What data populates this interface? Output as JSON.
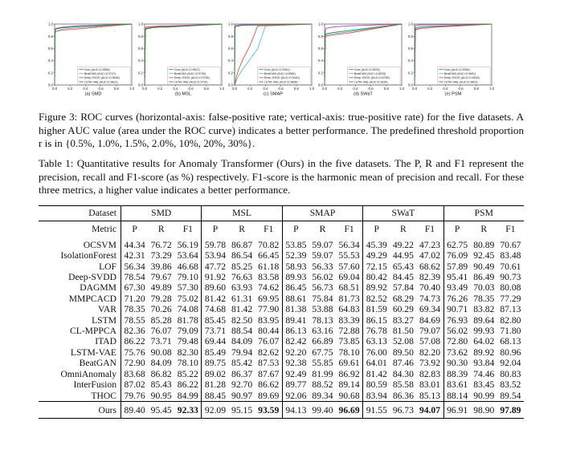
{
  "figure": {
    "caption_label": "Figure 3:",
    "caption_text": "ROC curves (horizontal-axis: false-positive rate; vertical-axis: true-positive rate) for the five datasets. A higher AUC value (area under the ROC curve) indicates a better performance. The predefined threshold proportion r is in {0.5%, 1.0%, 1.5%, 2.0%, 10%, 20%, 30%}."
  },
  "chart_data": [
    {
      "type": "line",
      "subtitle": "(a) SMD",
      "xlim": [
        0,
        1
      ],
      "ylim": [
        0,
        1
      ],
      "xticks": [
        "0.0",
        "0.2",
        "0.4",
        "0.6",
        "0.8",
        "1.0"
      ],
      "yticks": [
        "0.0",
        "0.2",
        "0.4",
        "0.6",
        "0.8",
        "1.0"
      ],
      "legend_position": "bottom-right",
      "series": [
        {
          "name": "Ours (AUC=0.9866)",
          "color": "#a348c9",
          "x": [
            0,
            0.005,
            0.01,
            0.02,
            0.1,
            0.2,
            0.3,
            1
          ],
          "y": [
            0,
            0.88,
            0.92,
            0.93,
            0.95,
            0.96,
            0.97,
            1
          ]
        },
        {
          "name": "BeatGAN (AUC=0.9727)",
          "color": "#58bfe0",
          "x": [
            0,
            0.005,
            0.01,
            0.02,
            0.1,
            0.2,
            0.3,
            1
          ],
          "y": [
            0,
            0.82,
            0.86,
            0.88,
            0.92,
            0.93,
            0.94,
            1
          ]
        },
        {
          "name": "Deep-SVDD (AUC=0.9648)",
          "color": "#e8503a",
          "x": [
            0,
            0.005,
            0.01,
            0.02,
            0.1,
            0.2,
            0.3,
            1
          ],
          "y": [
            0,
            0.84,
            0.87,
            0.88,
            0.9,
            0.91,
            0.92,
            1
          ]
        },
        {
          "name": "LSTM-VAE (AUC=0.9831)",
          "color": "#2e8b3a",
          "x": [
            0,
            0.005,
            0.01,
            0.02,
            0.1,
            0.2,
            0.3,
            1
          ],
          "y": [
            0,
            0.86,
            0.9,
            0.92,
            0.94,
            0.95,
            0.96,
            1
          ]
        }
      ]
    },
    {
      "type": "line",
      "subtitle": "(b) MSL",
      "xlim": [
        0,
        1
      ],
      "ylim": [
        0,
        1
      ],
      "xticks": [
        "0.0",
        "0.2",
        "0.4",
        "0.6",
        "0.8",
        "1.0"
      ],
      "yticks": [
        "0.0",
        "0.2",
        "0.4",
        "0.6",
        "0.8",
        "1.0"
      ],
      "legend_position": "bottom-right",
      "series": [
        {
          "name": "Ours (AUC=0.9812)",
          "color": "#a348c9",
          "x": [
            0,
            0.01,
            0.02,
            0.1,
            0.2,
            0.3,
            1
          ],
          "y": [
            0,
            0.93,
            0.95,
            0.96,
            0.97,
            0.97,
            1
          ]
        },
        {
          "name": "BeatGAN (AUC=0.9700)",
          "color": "#58bfe0",
          "x": [
            0,
            0.01,
            0.02,
            0.1,
            0.2,
            0.3,
            1
          ],
          "y": [
            0,
            0.9,
            0.92,
            0.94,
            0.95,
            0.95,
            1
          ]
        },
        {
          "name": "Deep-SVDD (AUC=0.9756)",
          "color": "#e8503a",
          "x": [
            0,
            0.01,
            0.02,
            0.1,
            0.2,
            0.3,
            1
          ],
          "y": [
            0,
            0.91,
            0.93,
            0.95,
            0.96,
            0.96,
            1
          ]
        },
        {
          "name": "LSTM-VAE (AUC=0.9726)",
          "color": "#2e8b3a",
          "x": [
            0,
            0.01,
            0.02,
            0.1,
            0.2,
            0.3,
            1
          ],
          "y": [
            0,
            0.9,
            0.92,
            0.94,
            0.95,
            0.95,
            1
          ]
        }
      ]
    },
    {
      "type": "line",
      "subtitle": "(c) SMAP",
      "xlim": [
        0,
        1
      ],
      "ylim": [
        0,
        1
      ],
      "xticks": [
        "0.0",
        "0.2",
        "0.4",
        "0.6",
        "0.8",
        "1.0"
      ],
      "yticks": [
        "0.0",
        "0.2",
        "0.4",
        "0.6",
        "0.8",
        "1.0"
      ],
      "legend_position": "bottom-right",
      "series": [
        {
          "name": "Ours (AUC=0.9941)",
          "color": "#a348c9",
          "x": [
            0,
            0.005,
            0.01,
            0.02,
            0.1,
            1
          ],
          "y": [
            0,
            0.96,
            0.97,
            0.98,
            0.99,
            1
          ]
        },
        {
          "name": "BeatGAN (AUC=0.8581)",
          "color": "#58bfe0",
          "x": [
            0,
            0.02,
            0.05,
            0.1,
            0.2,
            0.3,
            0.4,
            1
          ],
          "y": [
            0,
            0.06,
            0.15,
            0.25,
            0.42,
            0.6,
            0.97,
            1
          ]
        },
        {
          "name": "Deep-SVDD (AUC=0.9040)",
          "color": "#e8503a",
          "x": [
            0,
            0.02,
            0.05,
            0.1,
            0.2,
            0.3,
            1
          ],
          "y": [
            0,
            0.12,
            0.25,
            0.4,
            0.65,
            0.97,
            1
          ]
        },
        {
          "name": "LSTM-VAE (AUC=0.9808)",
          "color": "#2e8b3a",
          "x": [
            0,
            0.005,
            0.01,
            0.02,
            0.1,
            1
          ],
          "y": [
            0,
            0.93,
            0.95,
            0.96,
            0.98,
            1
          ]
        }
      ]
    },
    {
      "type": "line",
      "subtitle": "(d) SWaT",
      "xlim": [
        0,
        1
      ],
      "ylim": [
        0,
        1
      ],
      "xticks": [
        "0.0",
        "0.2",
        "0.4",
        "0.6",
        "0.8",
        "1.0"
      ],
      "yticks": [
        "0.0",
        "0.2",
        "0.4",
        "0.6",
        "0.8",
        "1.0"
      ],
      "legend_position": "bottom-right",
      "series": [
        {
          "name": "Ours (AUC=0.9876)",
          "color": "#a348c9",
          "x": [
            0,
            0.01,
            0.02,
            0.1,
            0.3,
            1
          ],
          "y": [
            0,
            0.9,
            0.93,
            0.95,
            0.97,
            1
          ]
        },
        {
          "name": "BeatGAN (AUC=0.8933)",
          "color": "#58bfe0",
          "x": [
            0,
            0.01,
            0.02,
            0.1,
            0.3,
            1
          ],
          "y": [
            0,
            0.8,
            0.82,
            0.84,
            0.87,
            1
          ]
        },
        {
          "name": "Deep-SVDD (AUC=0.8708)",
          "color": "#e8503a",
          "x": [
            0,
            0.01,
            0.02,
            0.1,
            0.3,
            1
          ],
          "y": [
            0,
            0.78,
            0.8,
            0.82,
            0.85,
            1
          ]
        },
        {
          "name": "LSTM-VAE (AUC=0.9034)",
          "color": "#2e8b3a",
          "x": [
            0,
            0.01,
            0.02,
            0.1,
            0.3,
            1
          ],
          "y": [
            0,
            0.82,
            0.84,
            0.86,
            0.89,
            1
          ]
        }
      ]
    },
    {
      "type": "line",
      "subtitle": "(e) PSM",
      "xlim": [
        0,
        1
      ],
      "ylim": [
        0,
        1
      ],
      "xticks": [
        "0.0",
        "0.2",
        "0.4",
        "0.6",
        "0.8",
        "1.0"
      ],
      "yticks": [
        "0.0",
        "0.2",
        "0.4",
        "0.6",
        "0.8",
        "1.0"
      ],
      "legend_position": "bottom-right",
      "series": [
        {
          "name": "Ours (AUC=0.9946)",
          "color": "#a348c9",
          "x": [
            0,
            0.005,
            0.01,
            0.02,
            0.1,
            1
          ],
          "y": [
            0,
            0.95,
            0.97,
            0.98,
            0.99,
            1
          ]
        },
        {
          "name": "BeatGAN (AUC=0.9691)",
          "color": "#58bfe0",
          "x": [
            0,
            0.01,
            0.02,
            0.1,
            0.3,
            1
          ],
          "y": [
            0,
            0.9,
            0.92,
            0.94,
            0.96,
            1
          ]
        },
        {
          "name": "Deep-SVDD (AUC=0.9618)",
          "color": "#e8503a",
          "x": [
            0,
            0.01,
            0.02,
            0.1,
            0.3,
            1
          ],
          "y": [
            0,
            0.89,
            0.91,
            0.93,
            0.95,
            1
          ]
        },
        {
          "name": "LSTM-VAE (AUC=0.9803)",
          "color": "#2e8b3a",
          "x": [
            0,
            0.01,
            0.02,
            0.1,
            0.3,
            1
          ],
          "y": [
            0,
            0.92,
            0.94,
            0.96,
            0.97,
            1
          ]
        }
      ]
    }
  ],
  "table": {
    "caption_label": "Table 1:",
    "caption_text": "Quantitative results for Anomaly Transformer (Ours) in the five datasets. The P, R and F1 represent the precision, recall and F1-score (as %) respectively. F1-score is the harmonic mean of precision and recall. For these three metrics, a higher value indicates a better performance.",
    "header_dataset": "Dataset",
    "header_metric": "Metric",
    "datasets": [
      "SMD",
      "MSL",
      "SMAP",
      "SWaT",
      "PSM"
    ],
    "metrics": [
      "P",
      "R",
      "F1"
    ],
    "rows": [
      {
        "name": "OCSVM",
        "values": [
          "44.34",
          "76.72",
          "56.19",
          "59.78",
          "86.87",
          "70.82",
          "53.85",
          "59.07",
          "56.34",
          "45.39",
          "49.22",
          "47.23",
          "62.75",
          "80.89",
          "70.67"
        ]
      },
      {
        "name": "IsolationForest",
        "values": [
          "42.31",
          "73.29",
          "53.64",
          "53.94",
          "86.54",
          "66.45",
          "52.39",
          "59.07",
          "55.53",
          "49.29",
          "44.95",
          "47.02",
          "76.09",
          "92.45",
          "83.48"
        ]
      },
      {
        "name": "LOF",
        "values": [
          "56.34",
          "39.86",
          "46.68",
          "47.72",
          "85.25",
          "61.18",
          "58.93",
          "56.33",
          "57.60",
          "72.15",
          "65.43",
          "68.62",
          "57.89",
          "90.49",
          "70.61"
        ]
      },
      {
        "name": "Deep-SVDD",
        "values": [
          "78.54",
          "79.67",
          "79.10",
          "91.92",
          "76.63",
          "83.58",
          "89.93",
          "56.02",
          "69.04",
          "80.42",
          "84.45",
          "82.39",
          "95.41",
          "86.49",
          "90.73"
        ]
      },
      {
        "name": "DAGMM",
        "values": [
          "67.30",
          "49.89",
          "57.30",
          "89.60",
          "63.93",
          "74.62",
          "86.45",
          "56.73",
          "68.51",
          "89.92",
          "57.84",
          "70.40",
          "93.49",
          "70.03",
          "80.08"
        ]
      },
      {
        "name": "MMPCACD",
        "values": [
          "71.20",
          "79.28",
          "75.02",
          "81.42",
          "61.31",
          "69.95",
          "88.61",
          "75.84",
          "81.73",
          "82.52",
          "68.29",
          "74.73",
          "76.26",
          "78.35",
          "77.29"
        ]
      },
      {
        "name": "VAR",
        "values": [
          "78.35",
          "70.26",
          "74.08",
          "74.68",
          "81.42",
          "77.90",
          "81.38",
          "53.88",
          "64.83",
          "81.59",
          "60.29",
          "69.34",
          "90.71",
          "83.82",
          "87.13"
        ]
      },
      {
        "name": "LSTM",
        "values": [
          "78.55",
          "85.28",
          "81.78",
          "85.45",
          "82.50",
          "83.95",
          "89.41",
          "78.13",
          "83.39",
          "86.15",
          "83.27",
          "84.69",
          "76.93",
          "89.64",
          "82.80"
        ]
      },
      {
        "name": "CL-MPPCA",
        "values": [
          "82.36",
          "76.07",
          "79.09",
          "73.71",
          "88.54",
          "80.44",
          "86.13",
          "63.16",
          "72.88",
          "76.78",
          "81.50",
          "79.07",
          "56.02",
          "99.93",
          "71.80"
        ]
      },
      {
        "name": "ITAD",
        "values": [
          "86.22",
          "73.71",
          "79.48",
          "69.44",
          "84.09",
          "76.07",
          "82.42",
          "66.89",
          "73.85",
          "63.13",
          "52.08",
          "57.08",
          "72.80",
          "64.02",
          "68.13"
        ]
      },
      {
        "name": "LSTM-VAE",
        "values": [
          "75.76",
          "90.08",
          "82.30",
          "85.49",
          "79.94",
          "82.62",
          "92.20",
          "67.75",
          "78.10",
          "76.00",
          "89.50",
          "82.20",
          "73.62",
          "89.92",
          "80.96"
        ]
      },
      {
        "name": "BeatGAN",
        "values": [
          "72.90",
          "84.09",
          "78.10",
          "89.75",
          "85.42",
          "87.53",
          "92.38",
          "55.85",
          "69.61",
          "64.01",
          "87.46",
          "73.92",
          "90.30",
          "93.84",
          "92.04"
        ]
      },
      {
        "name": "OmniAnomaly",
        "values": [
          "83.68",
          "86.82",
          "85.22",
          "89.02",
          "86.37",
          "87.67",
          "92.49",
          "81.99",
          "86.92",
          "81.42",
          "84.30",
          "82.83",
          "88.39",
          "74.46",
          "80.83"
        ]
      },
      {
        "name": "InterFusion",
        "values": [
          "87.02",
          "85.43",
          "86.22",
          "81.28",
          "92.70",
          "86.62",
          "89.77",
          "88.52",
          "89.14",
          "80.59",
          "85.58",
          "83.01",
          "83.61",
          "83.45",
          "83.52"
        ]
      },
      {
        "name": "THOC",
        "values": [
          "79.76",
          "90.95",
          "84.99",
          "88.45",
          "90.97",
          "89.69",
          "92.06",
          "89.34",
          "90.68",
          "83.94",
          "86.36",
          "85.13",
          "88.14",
          "90.99",
          "89.54"
        ]
      }
    ],
    "ours": {
      "name": "Ours",
      "values": [
        "89.40",
        "95.45",
        "92.33",
        "92.09",
        "95.15",
        "93.59",
        "94.13",
        "99.40",
        "96.69",
        "91.55",
        "96.73",
        "94.07",
        "96.91",
        "98.90",
        "97.89"
      ]
    }
  }
}
